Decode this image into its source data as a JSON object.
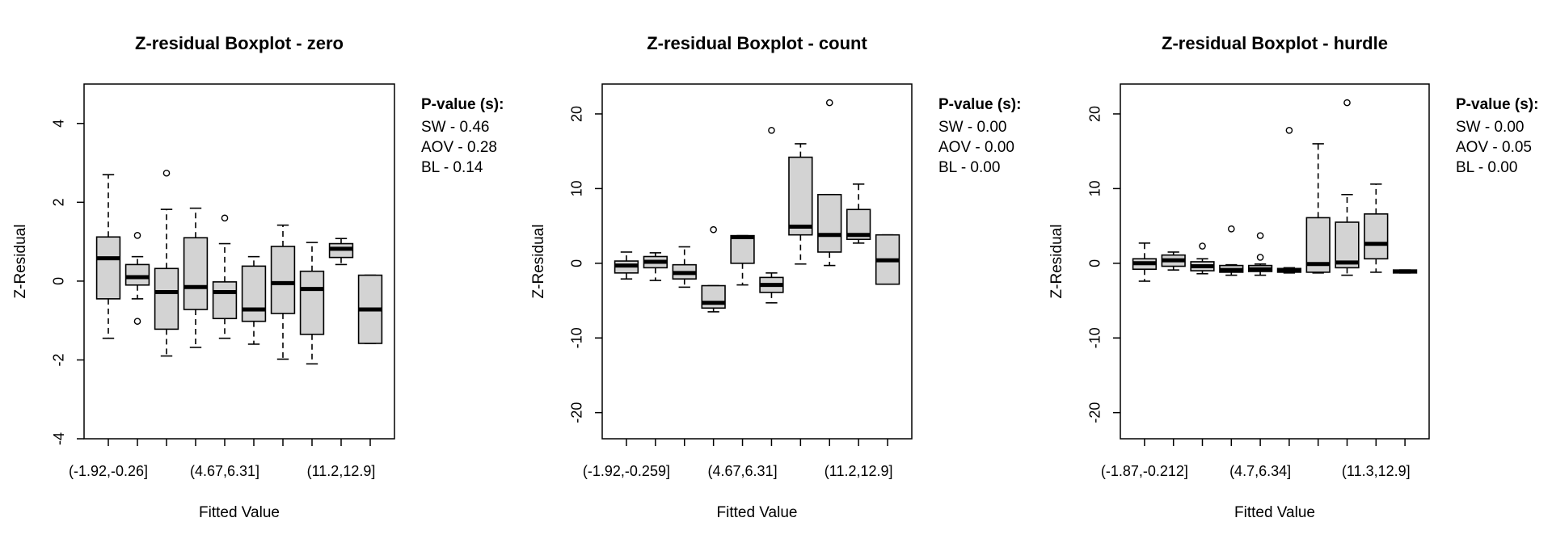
{
  "chart_data": [
    {
      "type": "boxplot",
      "title": "Z-residual Boxplot - zero",
      "xlabel": "Fitted Value",
      "ylabel": "Z-Residual",
      "ylim": [
        -4,
        5
      ],
      "yticks": [
        -4,
        -2,
        0,
        2,
        4
      ],
      "categories": [
        "(-1.92,-0.26]",
        "",
        "",
        "",
        "(4.67,6.31]",
        "",
        "",
        "",
        "(11.2,12.9]",
        ""
      ],
      "pvalue_header": "P-value (s):",
      "pvalues": [
        "SW - 0.46",
        "AOV - 0.28",
        "BL - 0.14"
      ],
      "boxes": [
        {
          "min": -1.45,
          "q1": -0.45,
          "median": 0.58,
          "q3": 1.12,
          "max": 2.7,
          "outliers": []
        },
        {
          "min": -0.45,
          "q1": -0.1,
          "median": 0.1,
          "q3": 0.42,
          "max": 0.62,
          "outliers": [
            1.16,
            -1.02
          ]
        },
        {
          "min": -1.9,
          "q1": -1.22,
          "median": -0.28,
          "q3": 0.32,
          "max": 1.82,
          "outliers": [
            2.74
          ]
        },
        {
          "min": -1.68,
          "q1": -0.72,
          "median": -0.15,
          "q3": 1.1,
          "max": 1.85,
          "outliers": []
        },
        {
          "min": -1.45,
          "q1": -0.95,
          "median": -0.28,
          "q3": -0.02,
          "max": 0.95,
          "outliers": [
            1.6
          ]
        },
        {
          "min": -1.6,
          "q1": -1.02,
          "median": -0.72,
          "q3": 0.38,
          "max": 0.62,
          "outliers": []
        },
        {
          "min": -1.98,
          "q1": -0.82,
          "median": -0.05,
          "q3": 0.88,
          "max": 1.42,
          "outliers": []
        },
        {
          "min": -2.1,
          "q1": -1.35,
          "median": -0.2,
          "q3": 0.25,
          "max": 0.98,
          "outliers": []
        },
        {
          "min": 0.42,
          "q1": 0.6,
          "median": 0.82,
          "q3": 0.95,
          "max": 1.08,
          "outliers": []
        },
        {
          "min": -1.58,
          "q1": -1.58,
          "median": -0.72,
          "q3": 0.15,
          "max": 0.15,
          "outliers": []
        }
      ]
    },
    {
      "type": "boxplot",
      "title": "Z-residual Boxplot - count",
      "xlabel": "Fitted Value",
      "ylabel": "Z-Residual",
      "ylim": [
        -23.5,
        24
      ],
      "yticks": [
        -20,
        -10,
        0,
        10,
        20
      ],
      "categories": [
        "(-1.92,-0.259]",
        "",
        "",
        "",
        "(4.67,6.31]",
        "",
        "",
        "",
        "(11.2,12.9]",
        ""
      ],
      "pvalue_header": "P-value (s):",
      "pvalues": [
        "SW - 0.00",
        "AOV - 0.00",
        "BL - 0.00"
      ],
      "boxes": [
        {
          "min": -2.1,
          "q1": -1.3,
          "median": -0.3,
          "q3": 0.3,
          "max": 1.5,
          "outliers": []
        },
        {
          "min": -2.3,
          "q1": -0.6,
          "median": 0.2,
          "q3": 0.9,
          "max": 1.4,
          "outliers": []
        },
        {
          "min": -3.2,
          "q1": -2.1,
          "median": -1.3,
          "q3": -0.2,
          "max": 2.2,
          "outliers": []
        },
        {
          "min": -6.5,
          "q1": -6.0,
          "median": -5.3,
          "q3": -3.0,
          "max": -3.0,
          "outliers": [
            4.5
          ]
        },
        {
          "min": -2.9,
          "q1": 0.0,
          "median": 3.5,
          "q3": 3.7,
          "max": 3.7,
          "outliers": []
        },
        {
          "min": -5.3,
          "q1": -3.9,
          "median": -2.9,
          "q3": -1.9,
          "max": -1.3,
          "outliers": [
            17.8
          ]
        },
        {
          "min": -0.1,
          "q1": 3.8,
          "median": 4.9,
          "q3": 14.2,
          "max": 16.0,
          "outliers": []
        },
        {
          "min": -0.3,
          "q1": 1.5,
          "median": 3.8,
          "q3": 9.2,
          "max": 9.2,
          "outliers": [
            21.5
          ]
        },
        {
          "min": 2.7,
          "q1": 3.2,
          "median": 3.8,
          "q3": 7.2,
          "max": 10.6,
          "outliers": []
        },
        {
          "min": -2.8,
          "q1": -2.8,
          "median": 0.4,
          "q3": 3.8,
          "max": 3.8,
          "outliers": []
        }
      ]
    },
    {
      "type": "boxplot",
      "title": "Z-residual Boxplot - hurdle",
      "xlabel": "Fitted Value",
      "ylabel": "Z-Residual",
      "ylim": [
        -23.5,
        24
      ],
      "yticks": [
        -20,
        -10,
        0,
        10,
        20
      ],
      "categories": [
        "(-1.87,-0.212]",
        "",
        "",
        "",
        "(4.7,6.34]",
        "",
        "",
        "",
        "(11.3,12.9]",
        ""
      ],
      "pvalue_header": "P-value (s):",
      "pvalues": [
        "SW - 0.00",
        "AOV - 0.05",
        "BL - 0.00"
      ],
      "boxes": [
        {
          "min": -2.4,
          "q1": -0.8,
          "median": 0.0,
          "q3": 0.6,
          "max": 2.7,
          "outliers": []
        },
        {
          "min": -0.9,
          "q1": -0.4,
          "median": 0.4,
          "q3": 1.1,
          "max": 1.5,
          "outliers": []
        },
        {
          "min": -1.4,
          "q1": -1.0,
          "median": -0.4,
          "q3": 0.2,
          "max": 0.6,
          "outliers": [
            2.3
          ]
        },
        {
          "min": -1.6,
          "q1": -1.2,
          "median": -0.9,
          "q3": -0.3,
          "max": -0.2,
          "outliers": [
            4.6
          ]
        },
        {
          "min": -1.6,
          "q1": -1.1,
          "median": -0.8,
          "q3": -0.3,
          "max": -0.1,
          "outliers": [
            3.7,
            0.8
          ]
        },
        {
          "min": -1.3,
          "q1": -1.2,
          "median": -0.9,
          "q3": -0.7,
          "max": -0.6,
          "outliers": [
            17.8
          ]
        },
        {
          "min": -1.3,
          "q1": -1.2,
          "median": -0.1,
          "q3": 6.1,
          "max": 16.0,
          "outliers": []
        },
        {
          "min": -1.6,
          "q1": -0.6,
          "median": 0.1,
          "q3": 5.5,
          "max": 9.2,
          "outliers": [
            21.5
          ]
        },
        {
          "min": -1.2,
          "q1": 0.6,
          "median": 2.6,
          "q3": 6.6,
          "max": 10.6,
          "outliers": []
        },
        {
          "min": -1.3,
          "q1": -1.3,
          "median": -1.1,
          "q3": -0.9,
          "max": -0.9,
          "outliers": []
        }
      ]
    }
  ]
}
